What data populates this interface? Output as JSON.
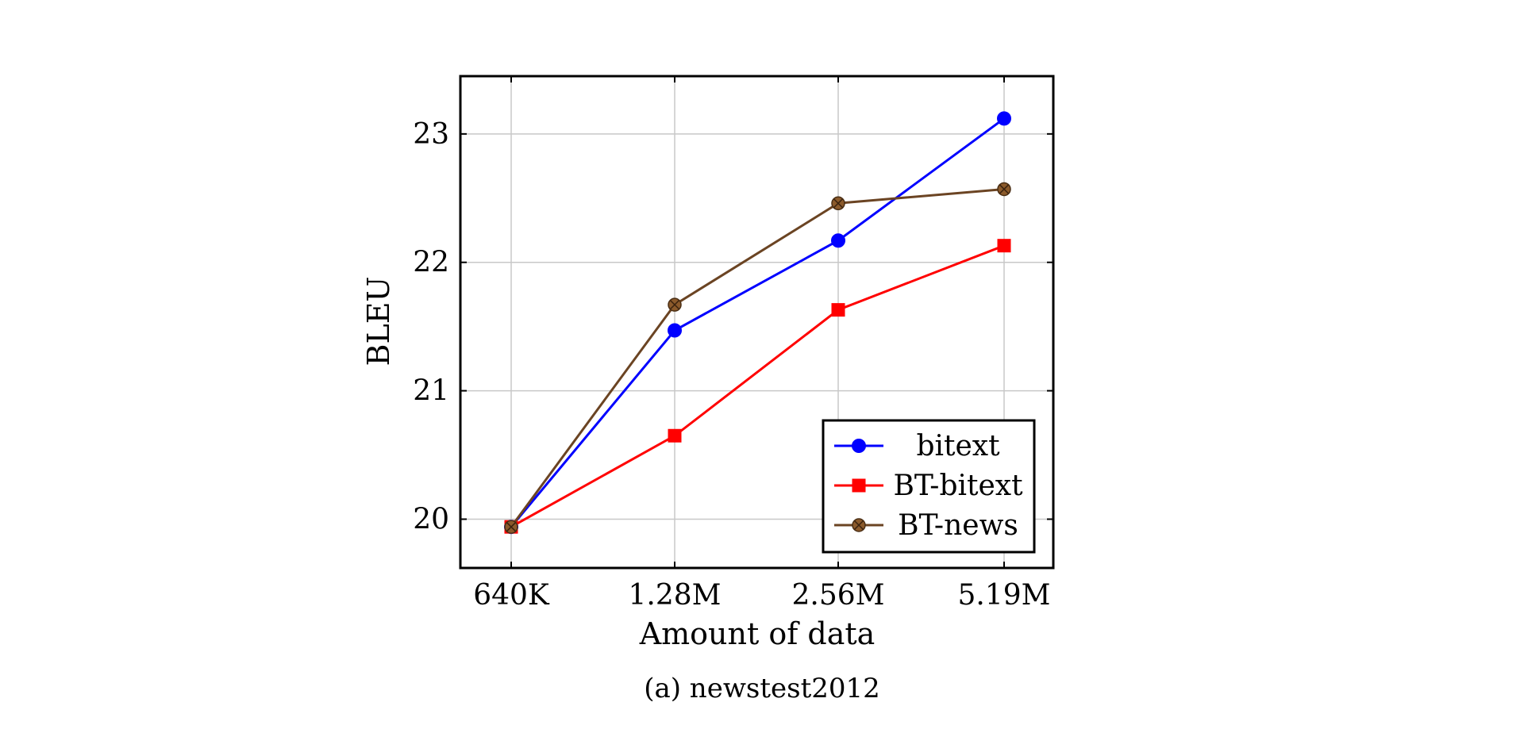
{
  "caption": "(a) newstest2012",
  "chart_data": {
    "type": "line",
    "xlabel": "Amount of data",
    "ylabel": "BLEU",
    "categories": [
      "640K",
      "1.28M",
      "2.56M",
      "5.19M"
    ],
    "yticks": [
      20,
      21,
      22,
      23
    ],
    "ylim": [
      19.62,
      23.45
    ],
    "grid": true,
    "legend_position": "bottom-right",
    "series": [
      {
        "name": "bitext",
        "color": "#0000ff",
        "marker": "circle",
        "values": [
          19.94,
          21.47,
          22.17,
          23.12
        ]
      },
      {
        "name": "BT-bitext",
        "color": "#ff0000",
        "marker": "square",
        "values": [
          19.94,
          20.65,
          21.63,
          22.13
        ]
      },
      {
        "name": "BT-news",
        "color": "#6b4423",
        "marker": "circle-x",
        "values": [
          19.94,
          21.67,
          22.46,
          22.57
        ]
      }
    ]
  }
}
